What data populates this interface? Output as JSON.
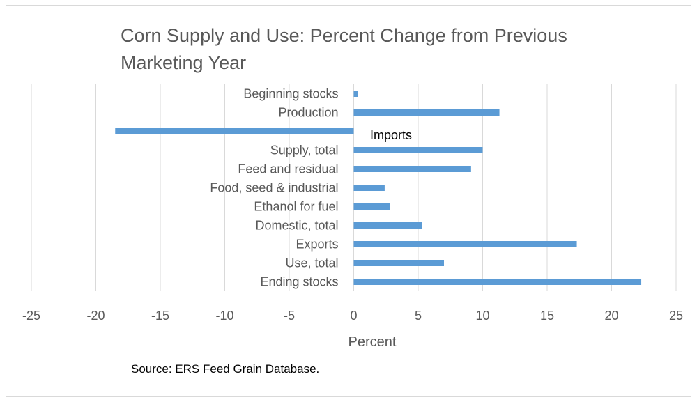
{
  "chart_data": {
    "type": "bar",
    "orientation": "horizontal",
    "title_lines": [
      "Corn Supply and Use: Percent Change from Previous",
      "Marketing Year"
    ],
    "categories": [
      "Beginning stocks",
      "Production",
      "Imports",
      "Supply, total",
      "Feed and residual",
      "Food, seed & industrial",
      "Ethanol for fuel",
      "Domestic, total",
      "Exports",
      "Use, total",
      "Ending stocks"
    ],
    "values": [
      0.3,
      11.3,
      -18.5,
      10.0,
      9.1,
      2.4,
      2.8,
      5.3,
      17.3,
      7.0,
      22.3
    ],
    "xlabel": "Percent",
    "ylabel": "",
    "xlim": [
      -25,
      25
    ],
    "xticks": [
      "-25",
      "-20",
      "-15",
      "-10",
      "-5",
      "0",
      "5",
      "10",
      "15",
      "20",
      "25"
    ],
    "grid": "vertical",
    "bar_color": "#5b9bd5",
    "grid_color": "#d9d9d9",
    "annotation": "Imports",
    "source": "Source: ERS Feed Grain Database."
  }
}
